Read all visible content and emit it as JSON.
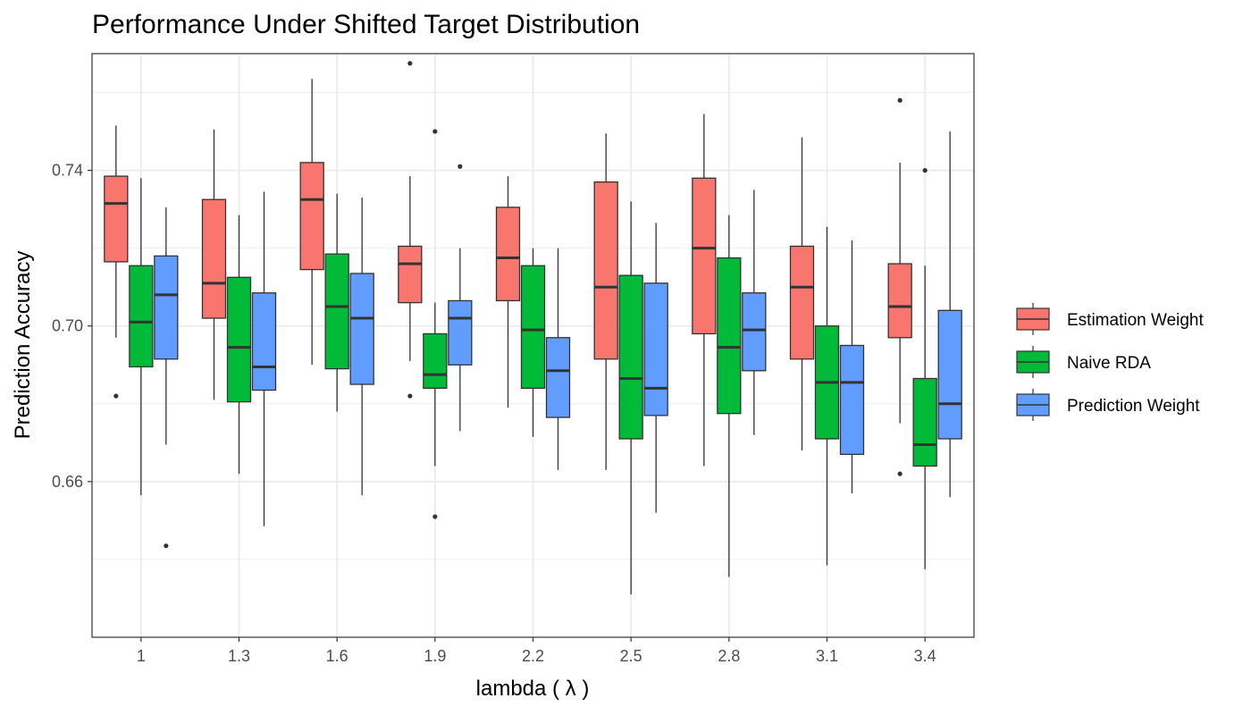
{
  "chart_data": {
    "type": "boxplot",
    "title": "Performance Under Shifted Target Distribution",
    "xlabel": "lambda ( λ )",
    "ylabel": "Prediction Accuracy",
    "ylim": [
      0.62,
      0.77
    ],
    "y_ticks": [
      0.66,
      0.7,
      0.74
    ],
    "y_tick_labels": [
      "0.66",
      "0.70",
      "0.74"
    ],
    "categories": [
      "1",
      "1.3",
      "1.6",
      "1.9",
      "2.2",
      "2.5",
      "2.8",
      "3.1",
      "3.4"
    ],
    "grid": true,
    "legend_position": "right",
    "series": [
      {
        "name": "Estimation Weight",
        "color": "#F8766D",
        "boxes": [
          {
            "whisker_low": 0.697,
            "q1": 0.7165,
            "median": 0.7315,
            "q3": 0.7385,
            "whisker_high": 0.7515,
            "outliers": [
              0.682
            ]
          },
          {
            "whisker_low": 0.681,
            "q1": 0.702,
            "median": 0.711,
            "q3": 0.7325,
            "whisker_high": 0.7505,
            "outliers": []
          },
          {
            "whisker_low": 0.69,
            "q1": 0.7145,
            "median": 0.7325,
            "q3": 0.742,
            "whisker_high": 0.7635,
            "outliers": []
          },
          {
            "whisker_low": 0.691,
            "q1": 0.706,
            "median": 0.716,
            "q3": 0.7205,
            "whisker_high": 0.7385,
            "outliers": [
              0.7675,
              0.682
            ]
          },
          {
            "whisker_low": 0.679,
            "q1": 0.7065,
            "median": 0.7175,
            "q3": 0.7305,
            "whisker_high": 0.7385,
            "outliers": []
          },
          {
            "whisker_low": 0.663,
            "q1": 0.6915,
            "median": 0.71,
            "q3": 0.737,
            "whisker_high": 0.7495,
            "outliers": []
          },
          {
            "whisker_low": 0.664,
            "q1": 0.698,
            "median": 0.72,
            "q3": 0.738,
            "whisker_high": 0.7545,
            "outliers": []
          },
          {
            "whisker_low": 0.668,
            "q1": 0.6915,
            "median": 0.71,
            "q3": 0.7205,
            "whisker_high": 0.7485,
            "outliers": []
          },
          {
            "whisker_low": 0.675,
            "q1": 0.697,
            "median": 0.705,
            "q3": 0.716,
            "whisker_high": 0.742,
            "outliers": [
              0.758,
              0.662
            ]
          }
        ]
      },
      {
        "name": "Naive RDA",
        "color": "#00BA38",
        "boxes": [
          {
            "whisker_low": 0.6565,
            "q1": 0.6895,
            "median": 0.701,
            "q3": 0.7155,
            "whisker_high": 0.738,
            "outliers": []
          },
          {
            "whisker_low": 0.662,
            "q1": 0.6805,
            "median": 0.6945,
            "q3": 0.7125,
            "whisker_high": 0.7285,
            "outliers": []
          },
          {
            "whisker_low": 0.678,
            "q1": 0.689,
            "median": 0.705,
            "q3": 0.7185,
            "whisker_high": 0.734,
            "outliers": []
          },
          {
            "whisker_low": 0.664,
            "q1": 0.684,
            "median": 0.6875,
            "q3": 0.698,
            "whisker_high": 0.706,
            "outliers": [
              0.75,
              0.651
            ]
          },
          {
            "whisker_low": 0.6715,
            "q1": 0.684,
            "median": 0.699,
            "q3": 0.7155,
            "whisker_high": 0.72,
            "outliers": []
          },
          {
            "whisker_low": 0.631,
            "q1": 0.671,
            "median": 0.6865,
            "q3": 0.713,
            "whisker_high": 0.732,
            "outliers": []
          },
          {
            "whisker_low": 0.6355,
            "q1": 0.6775,
            "median": 0.6945,
            "q3": 0.7175,
            "whisker_high": 0.7285,
            "outliers": []
          },
          {
            "whisker_low": 0.6385,
            "q1": 0.671,
            "median": 0.6855,
            "q3": 0.7,
            "whisker_high": 0.7255,
            "outliers": []
          },
          {
            "whisker_low": 0.6375,
            "q1": 0.664,
            "median": 0.6695,
            "q3": 0.6865,
            "whisker_high": 0.7155,
            "outliers": [
              0.74
            ]
          }
        ]
      },
      {
        "name": "Prediction Weight",
        "color": "#619CFF",
        "boxes": [
          {
            "whisker_low": 0.6695,
            "q1": 0.6915,
            "median": 0.708,
            "q3": 0.718,
            "whisker_high": 0.7305,
            "outliers": [
              0.6435
            ]
          },
          {
            "whisker_low": 0.6485,
            "q1": 0.6835,
            "median": 0.6895,
            "q3": 0.7085,
            "whisker_high": 0.7345,
            "outliers": []
          },
          {
            "whisker_low": 0.6565,
            "q1": 0.685,
            "median": 0.702,
            "q3": 0.7135,
            "whisker_high": 0.733,
            "outliers": []
          },
          {
            "whisker_low": 0.673,
            "q1": 0.69,
            "median": 0.702,
            "q3": 0.7065,
            "whisker_high": 0.72,
            "outliers": [
              0.741
            ]
          },
          {
            "whisker_low": 0.663,
            "q1": 0.6765,
            "median": 0.6885,
            "q3": 0.697,
            "whisker_high": 0.72,
            "outliers": []
          },
          {
            "whisker_low": 0.652,
            "q1": 0.677,
            "median": 0.684,
            "q3": 0.711,
            "whisker_high": 0.7265,
            "outliers": []
          },
          {
            "whisker_low": 0.672,
            "q1": 0.6885,
            "median": 0.699,
            "q3": 0.7085,
            "whisker_high": 0.735,
            "outliers": []
          },
          {
            "whisker_low": 0.657,
            "q1": 0.667,
            "median": 0.6855,
            "q3": 0.695,
            "whisker_high": 0.722,
            "outliers": []
          },
          {
            "whisker_low": 0.656,
            "q1": 0.671,
            "median": 0.68,
            "q3": 0.704,
            "whisker_high": 0.75,
            "outliers": []
          }
        ]
      }
    ]
  }
}
